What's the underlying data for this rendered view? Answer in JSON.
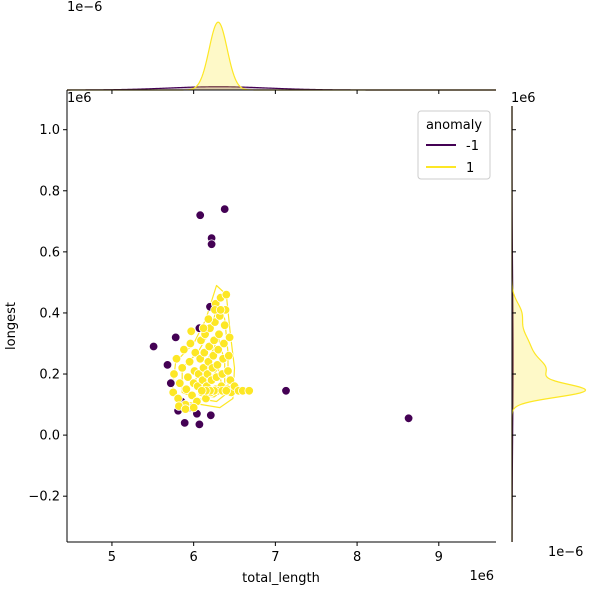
{
  "chart_data": {
    "type": "scatter",
    "xlabel": "total_length",
    "ylabel": "longest",
    "x_offset_label": "1e6",
    "y_offset_label": "1e6",
    "top_marginal_offset_label": "1e−6",
    "right_marginal_offset_label": "1e−6",
    "right_marginal_top_label": "1e6",
    "xlim": [
      4.45,
      9.7
    ],
    "ylim": [
      -0.35,
      1.13
    ],
    "x_ticks": [
      5,
      6,
      7,
      8,
      9
    ],
    "y_ticks": [
      -0.2,
      0.0,
      0.2,
      0.4,
      0.6,
      0.8,
      1.0
    ],
    "x_tick_labels": [
      "5",
      "6",
      "7",
      "8",
      "9"
    ],
    "y_tick_labels": [
      "−0.2",
      "0.0",
      "0.2",
      "0.4",
      "0.6",
      "0.8",
      "1.0"
    ],
    "legend": {
      "title": "anomaly",
      "placement": "top-right",
      "entries": [
        {
          "label": "-1",
          "color": "#440154"
        },
        {
          "label": "1",
          "color": "#fde725"
        }
      ]
    },
    "series": [
      {
        "name": "-1",
        "color": "#440154",
        "points": [
          [
            6.08,
            0.72
          ],
          [
            6.38,
            0.74
          ],
          [
            6.22,
            0.645
          ],
          [
            6.22,
            0.625
          ],
          [
            5.51,
            0.29
          ],
          [
            5.78,
            0.32
          ],
          [
            5.68,
            0.23
          ],
          [
            5.72,
            0.17
          ],
          [
            5.85,
            0.11
          ],
          [
            5.81,
            0.08
          ],
          [
            5.94,
            0.09
          ],
          [
            6.04,
            0.07
          ],
          [
            5.89,
            0.04
          ],
          [
            6.07,
            0.035
          ],
          [
            6.21,
            0.065
          ],
          [
            6.07,
            0.35
          ],
          [
            6.2,
            0.42
          ],
          [
            7.13,
            0.145
          ],
          [
            8.63,
            0.055
          ]
        ]
      },
      {
        "name": "1",
        "color": "#fde725",
        "points": [
          [
            5.75,
            0.14
          ],
          [
            5.76,
            0.2
          ],
          [
            5.79,
            0.25
          ],
          [
            5.81,
            0.12
          ],
          [
            5.83,
            0.17
          ],
          [
            5.86,
            0.22
          ],
          [
            5.88,
            0.28
          ],
          [
            5.9,
            0.1
          ],
          [
            5.91,
            0.15
          ],
          [
            5.93,
            0.19
          ],
          [
            5.95,
            0.24
          ],
          [
            5.96,
            0.3
          ],
          [
            5.98,
            0.13
          ],
          [
            6.0,
            0.17
          ],
          [
            6.01,
            0.21
          ],
          [
            6.02,
            0.27
          ],
          [
            6.04,
            0.11
          ],
          [
            6.05,
            0.16
          ],
          [
            6.06,
            0.2
          ],
          [
            6.08,
            0.25
          ],
          [
            6.09,
            0.31
          ],
          [
            6.1,
            0.14
          ],
          [
            6.11,
            0.18
          ],
          [
            6.12,
            0.22
          ],
          [
            6.13,
            0.27
          ],
          [
            6.14,
            0.33
          ],
          [
            6.15,
            0.12
          ],
          [
            6.16,
            0.16
          ],
          [
            6.17,
            0.2
          ],
          [
            6.18,
            0.24
          ],
          [
            6.19,
            0.29
          ],
          [
            6.2,
            0.35
          ],
          [
            6.21,
            0.14
          ],
          [
            6.22,
            0.18
          ],
          [
            6.23,
            0.22
          ],
          [
            6.24,
            0.26
          ],
          [
            6.25,
            0.31
          ],
          [
            6.26,
            0.37
          ],
          [
            6.27,
            0.43
          ],
          [
            6.27,
            0.15
          ],
          [
            6.28,
            0.19
          ],
          [
            6.29,
            0.23
          ],
          [
            6.3,
            0.28
          ],
          [
            6.31,
            0.33
          ],
          [
            6.32,
            0.39
          ],
          [
            6.33,
            0.45
          ],
          [
            6.34,
            0.16
          ],
          [
            6.35,
            0.2
          ],
          [
            6.36,
            0.25
          ],
          [
            6.37,
            0.3
          ],
          [
            6.38,
            0.36
          ],
          [
            6.39,
            0.41
          ],
          [
            6.4,
            0.46
          ],
          [
            6.41,
            0.15
          ],
          [
            6.42,
            0.21
          ],
          [
            6.43,
            0.26
          ],
          [
            6.44,
            0.32
          ],
          [
            6.45,
            0.18
          ],
          [
            6.46,
            0.14
          ],
          [
            6.5,
            0.16
          ],
          [
            6.55,
            0.145
          ],
          [
            6.6,
            0.145
          ],
          [
            6.68,
            0.145
          ],
          [
            6.3,
            0.145
          ],
          [
            6.25,
            0.145
          ],
          [
            6.2,
            0.145
          ],
          [
            6.15,
            0.145
          ],
          [
            6.35,
            0.145
          ],
          [
            6.4,
            0.145
          ],
          [
            6.1,
            0.145
          ],
          [
            5.82,
            0.095
          ],
          [
            5.9,
            0.085
          ],
          [
            6.0,
            0.09
          ],
          [
            6.26,
            0.41
          ],
          [
            6.33,
            0.41
          ],
          [
            6.18,
            0.38
          ],
          [
            6.12,
            0.35
          ],
          [
            5.97,
            0.34
          ]
        ]
      }
    ],
    "top_marginal": {
      "series": [
        {
          "name": "-1",
          "mean": 6.3,
          "sd": 0.6,
          "peak": 0.15
        },
        {
          "name": "1",
          "mean": 6.3,
          "sd": 0.11,
          "peak": 3.1
        }
      ]
    },
    "right_marginal": {
      "series": [
        {
          "name": "-1",
          "mean": 0.25,
          "sd": 0.25,
          "peak": 0.05
        },
        {
          "name": "1",
          "components": [
            {
              "mean": 0.145,
              "sd": 0.022,
              "weight": 3.2
            },
            {
              "mean": 0.21,
              "sd": 0.035,
              "weight": 1.35
            },
            {
              "mean": 0.29,
              "sd": 0.05,
              "weight": 0.8
            },
            {
              "mean": 0.4,
              "sd": 0.035,
              "weight": 0.4
            }
          ]
        }
      ]
    }
  }
}
